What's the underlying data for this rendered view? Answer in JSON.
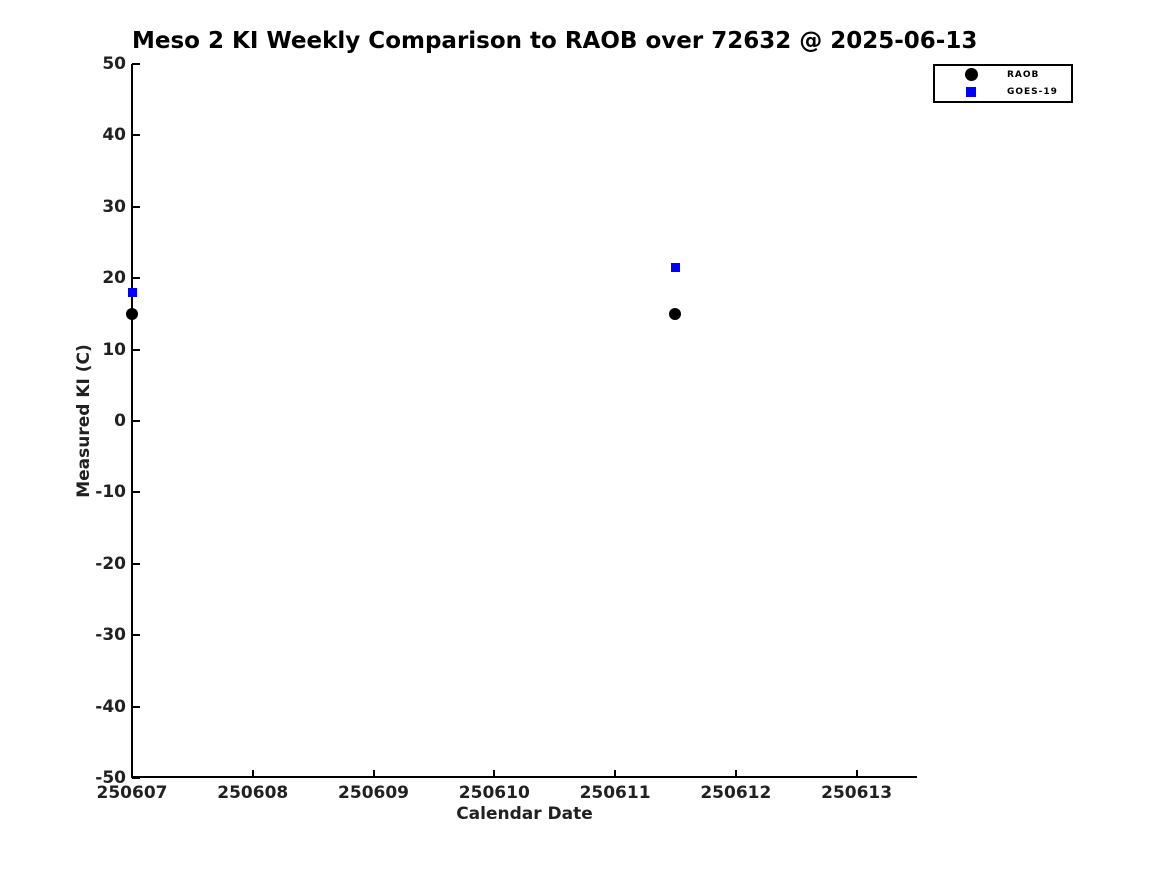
{
  "chart_data": {
    "type": "scatter",
    "title": "Meso 2 KI Weekly Comparison to RAOB over 72632 @ 2025-06-13",
    "xlabel": "Calendar Date",
    "ylabel": "Measured KI (C)",
    "xlim": [
      250607,
      250613.5
    ],
    "ylim": [
      -50,
      50
    ],
    "xticks": [
      250607,
      250608,
      250609,
      250610,
      250611,
      250612,
      250613
    ],
    "yticks": [
      50,
      40,
      30,
      20,
      10,
      0,
      -10,
      -20,
      -30,
      -40,
      -50
    ],
    "grid": false,
    "legend_position": "upper-right",
    "series": [
      {
        "name": "RAOB",
        "marker": "circle",
        "color": "#000000",
        "marker_size": 12,
        "points": [
          {
            "x": 250607,
            "y": 15
          },
          {
            "x": 250611.5,
            "y": 15
          }
        ]
      },
      {
        "name": "GOES-19",
        "marker": "square",
        "color": "#0000ff",
        "marker_size": 9,
        "points": [
          {
            "x": 250607,
            "y": 18
          },
          {
            "x": 250611.5,
            "y": 21.5
          }
        ]
      }
    ]
  }
}
